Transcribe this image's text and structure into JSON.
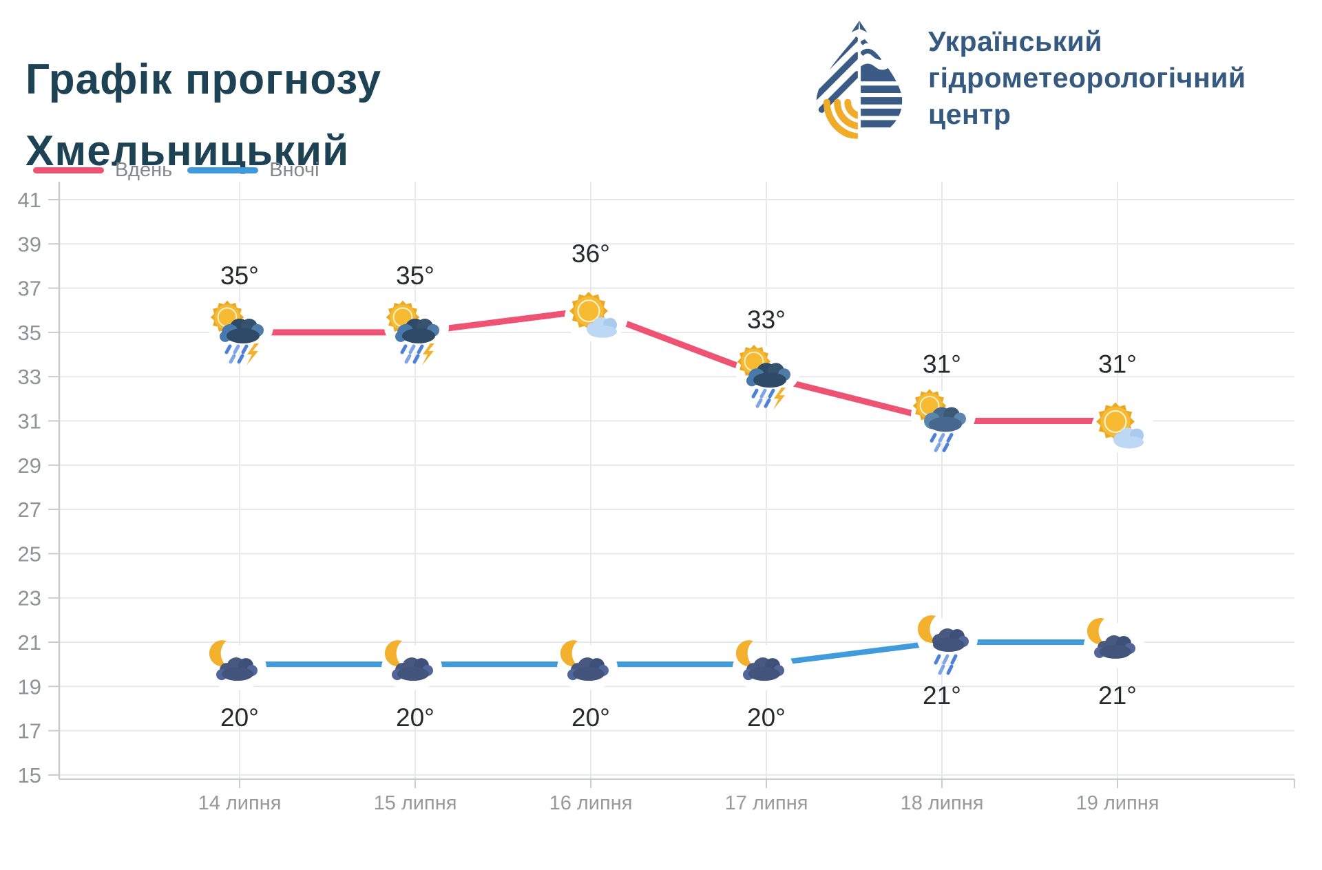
{
  "header": {
    "title_line1": "Графік прогнозу",
    "title_line2": "Хмельницький",
    "org": {
      "line1": "Український",
      "line2": "гідрометеорологічний",
      "line3": "центр"
    }
  },
  "legend": {
    "day_label": "Вдень",
    "night_label": "Вночі",
    "day_color": "#ee5374",
    "night_color": "#3f9bdb"
  },
  "chart_data": {
    "type": "line",
    "categories": [
      "14 липня",
      "15 липня",
      "16 липня",
      "17 липня",
      "18 липня",
      "19 липня"
    ],
    "series": [
      {
        "name": "Вдень",
        "color": "#ee5374",
        "values": [
          35,
          35,
          36,
          33,
          31,
          31
        ],
        "point_labels": [
          "35°",
          "35°",
          "36°",
          "33°",
          "31°",
          "31°"
        ],
        "icons": [
          "sun-storm-icon",
          "sun-storm-icon",
          "sun-cloud-icon",
          "sun-storm-icon",
          "sun-rain-icon",
          "sun-cloud-icon"
        ]
      },
      {
        "name": "Вночі",
        "color": "#3f9bdb",
        "values": [
          20,
          20,
          20,
          20,
          21,
          21
        ],
        "point_labels": [
          "20°",
          "20°",
          "20°",
          "20°",
          "21°",
          "21°"
        ],
        "icons": [
          "moon-cloud-icon",
          "moon-cloud-icon",
          "moon-cloud-icon",
          "moon-cloud-icon",
          "moon-rain-icon",
          "moon-cloud-icon"
        ]
      }
    ],
    "y_ticks": [
      41,
      39,
      37,
      35,
      33,
      31,
      29,
      27,
      25,
      23,
      21,
      19,
      17,
      15
    ],
    "ylim": [
      15,
      41
    ],
    "xlabel": "",
    "ylabel": "",
    "grid": true,
    "legend_position": "top-left"
  },
  "colors": {
    "title": "#1d4254",
    "org_text": "#35597f",
    "grid": "#e7e8ea",
    "axis": "#c9cbcd",
    "tick_text": "#8f9295",
    "date_text": "#97999c",
    "value_text": "#26282c",
    "legend_text": "#85878c",
    "logo_navy": "#3b5a85",
    "logo_yellow": "#f0ac28"
  }
}
